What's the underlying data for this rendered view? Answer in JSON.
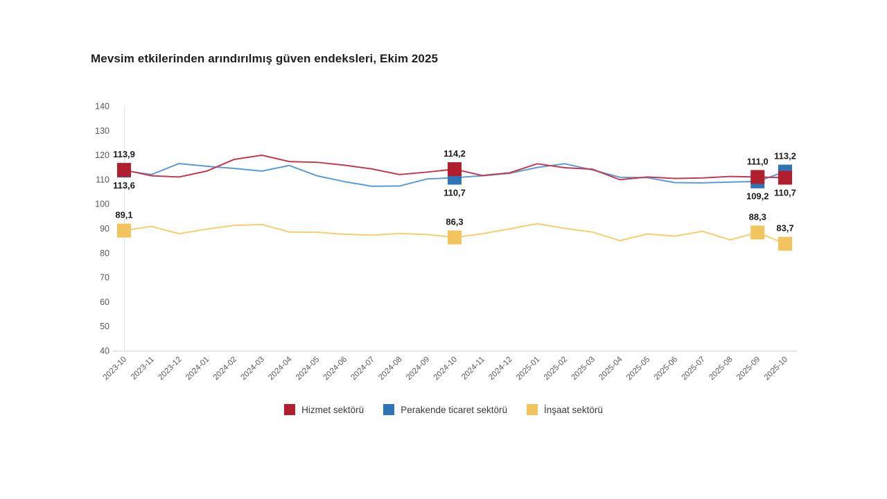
{
  "chart_data": {
    "type": "line",
    "title": "Mevsim etkilerinden arındırılmış güven endeksleri, Ekim 2025",
    "xlabel": "",
    "ylabel": "",
    "ylim": [
      40,
      140
    ],
    "ytick_step": 10,
    "grid": "off",
    "legend_position": "bottom",
    "categories": [
      "2023-10",
      "2023-11",
      "2023-12",
      "2024-01",
      "2024-02",
      "2024-03",
      "2024-04",
      "2024-05",
      "2024-06",
      "2024-07",
      "2024-08",
      "2024-09",
      "2024-10",
      "2024-11",
      "2024-12",
      "2025-01",
      "2025-02",
      "2025-03",
      "2025-04",
      "2025-05",
      "2025-06",
      "2025-07",
      "2025-08",
      "2025-09",
      "2025-10"
    ],
    "series": [
      {
        "name": "Hizmet sektörü",
        "color": "#B11F2E",
        "line_color": "#C23B52",
        "values": [
          113.9,
          111.5,
          111.0,
          113.4,
          118.2,
          119.9,
          117.3,
          117.0,
          115.8,
          114.3,
          112.0,
          113.0,
          114.2,
          111.6,
          112.7,
          116.4,
          114.8,
          114.2,
          109.9,
          111.0,
          110.4,
          110.6,
          111.2,
          111.0,
          110.7
        ],
        "markers": [
          {
            "category": "2023-10",
            "label": "113,9",
            "label_position": "above"
          },
          {
            "category": "2024-10",
            "label": "114,2",
            "label_position": "above"
          },
          {
            "category": "2025-09",
            "label": "111,0",
            "label_position": "above"
          },
          {
            "category": "2025-10",
            "label": "110,7",
            "label_position": "below"
          }
        ]
      },
      {
        "name": "Perakende ticaret sektörü",
        "color": "#2E75B6",
        "line_color": "#5B9BD5",
        "values": [
          113.6,
          112.0,
          116.5,
          115.4,
          114.5,
          113.4,
          115.7,
          111.5,
          109.1,
          107.2,
          107.3,
          110.2,
          110.7,
          111.5,
          112.5,
          114.9,
          116.4,
          113.9,
          110.9,
          110.7,
          108.7,
          108.6,
          108.9,
          109.2,
          113.2
        ],
        "markers": [
          {
            "category": "2023-10",
            "label": "113,6",
            "label_position": "below"
          },
          {
            "category": "2024-10",
            "label": "110,7",
            "label_position": "below"
          },
          {
            "category": "2025-09",
            "label": "109,2",
            "label_position": "below"
          },
          {
            "category": "2025-10",
            "label": "113,2",
            "label_position": "above"
          }
        ]
      },
      {
        "name": "İnşaat sektörü",
        "color": "#F2C45E",
        "line_color": "#F6CE6E",
        "values": [
          89.1,
          90.8,
          87.8,
          89.7,
          91.2,
          91.6,
          88.5,
          88.4,
          87.6,
          87.2,
          87.9,
          87.5,
          86.3,
          87.8,
          89.8,
          91.9,
          90.0,
          88.5,
          85.0,
          87.7,
          86.8,
          88.8,
          85.3,
          88.3,
          83.7
        ],
        "markers": [
          {
            "category": "2023-10",
            "label": "89,1",
            "label_position": "above"
          },
          {
            "category": "2024-10",
            "label": "86,3",
            "label_position": "above"
          },
          {
            "category": "2025-09",
            "label": "88,3",
            "label_position": "above"
          },
          {
            "category": "2025-10",
            "label": "83,7",
            "label_position": "above"
          }
        ]
      }
    ]
  }
}
